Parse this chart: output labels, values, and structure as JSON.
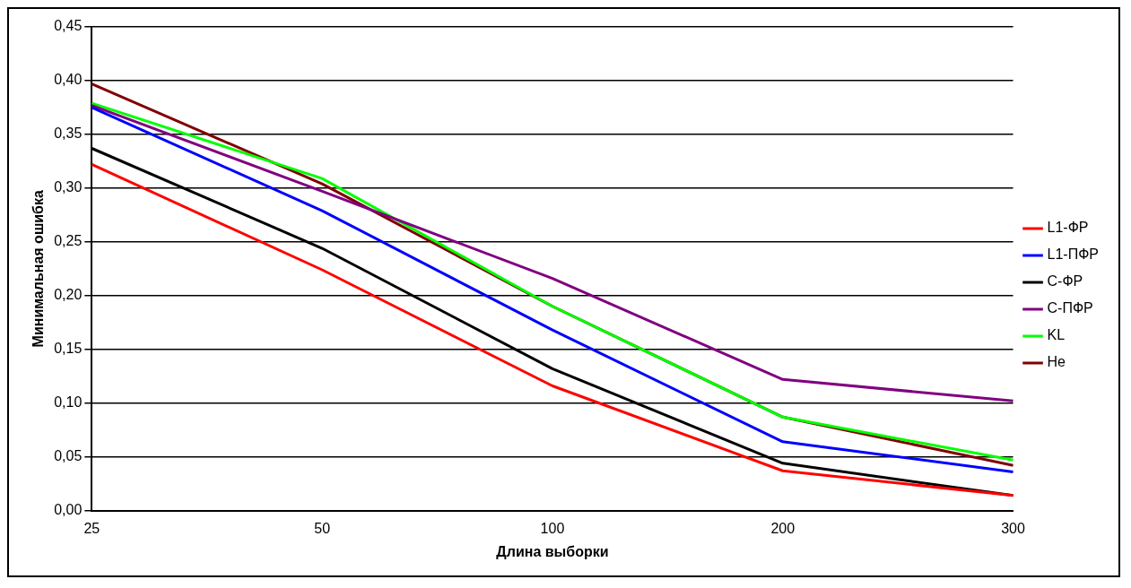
{
  "chart_data": {
    "type": "line",
    "xlabel": "Длина выборки",
    "ylabel": "Минимальная ошибка",
    "categories": [
      "25",
      "50",
      "100",
      "200",
      "300"
    ],
    "series": [
      {
        "name": "L1-ФР",
        "color": "#ff0000",
        "values": [
          0.322,
          0.224,
          0.116,
          0.037,
          0.014
        ]
      },
      {
        "name": "L1-ПФР",
        "color": "#0000ff",
        "values": [
          0.375,
          0.279,
          0.168,
          0.064,
          0.036
        ]
      },
      {
        "name": "C-ФР",
        "color": "#000000",
        "values": [
          0.337,
          0.244,
          0.132,
          0.044,
          0.014
        ]
      },
      {
        "name": "C-ПФР",
        "color": "#800080",
        "values": [
          0.377,
          0.297,
          0.216,
          0.122,
          0.102
        ]
      },
      {
        "name": "KL",
        "color": "#00ff00",
        "values": [
          0.379,
          0.309,
          0.19,
          0.087,
          0.047
        ]
      },
      {
        "name": "He",
        "color": "#800000",
        "values": [
          0.397,
          0.304,
          0.19,
          0.087,
          0.042
        ]
      }
    ],
    "ylim": [
      0,
      0.45
    ],
    "yticks": [
      {
        "value": 0,
        "label": "0,00"
      },
      {
        "value": 0.05,
        "label": "0,05"
      },
      {
        "value": 0.1,
        "label": "0,10"
      },
      {
        "value": 0.15,
        "label": "0,15"
      },
      {
        "value": 0.2,
        "label": "0,20"
      },
      {
        "value": 0.25,
        "label": "0,25"
      },
      {
        "value": 0.3,
        "label": "0,30"
      },
      {
        "value": 0.35,
        "label": "0,35"
      },
      {
        "value": 0.4,
        "label": "0,40"
      },
      {
        "value": 0.45,
        "label": "0,45"
      }
    ],
    "grid": "y",
    "legend": "right",
    "marker": "none",
    "line_style": "solid"
  }
}
